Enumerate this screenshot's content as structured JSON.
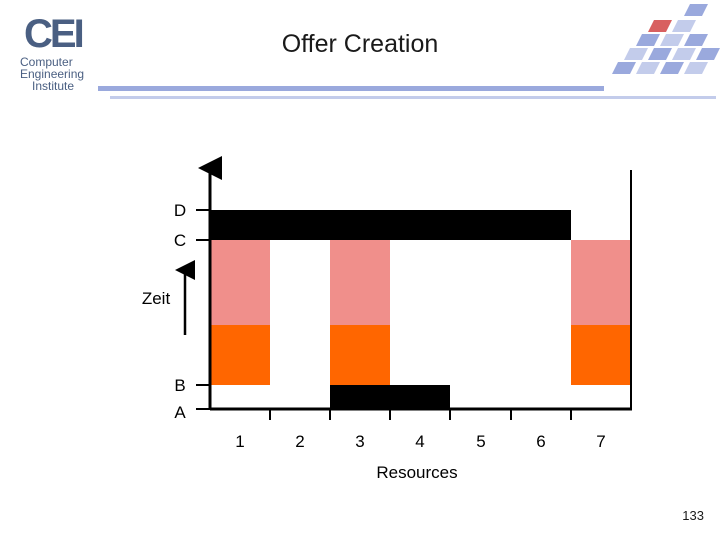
{
  "slide": {
    "title": "Offer Creation",
    "page_number": "133"
  },
  "logo": {
    "letters": "CEI",
    "line1": "Computer",
    "line2": "Engineering",
    "line3": "Institute"
  },
  "diagram": {
    "y_axis_label": "Zeit",
    "x_axis_label": "Resources",
    "y_markers": [
      "D",
      "C",
      "B",
      "A"
    ],
    "x_ticks": [
      "1",
      "2",
      "3",
      "4",
      "5",
      "6",
      "7"
    ],
    "colors": {
      "black_block": "#000000",
      "pink_block": "#f08f8b",
      "orange_block": "#ff6600",
      "axis": "#000000"
    }
  }
}
